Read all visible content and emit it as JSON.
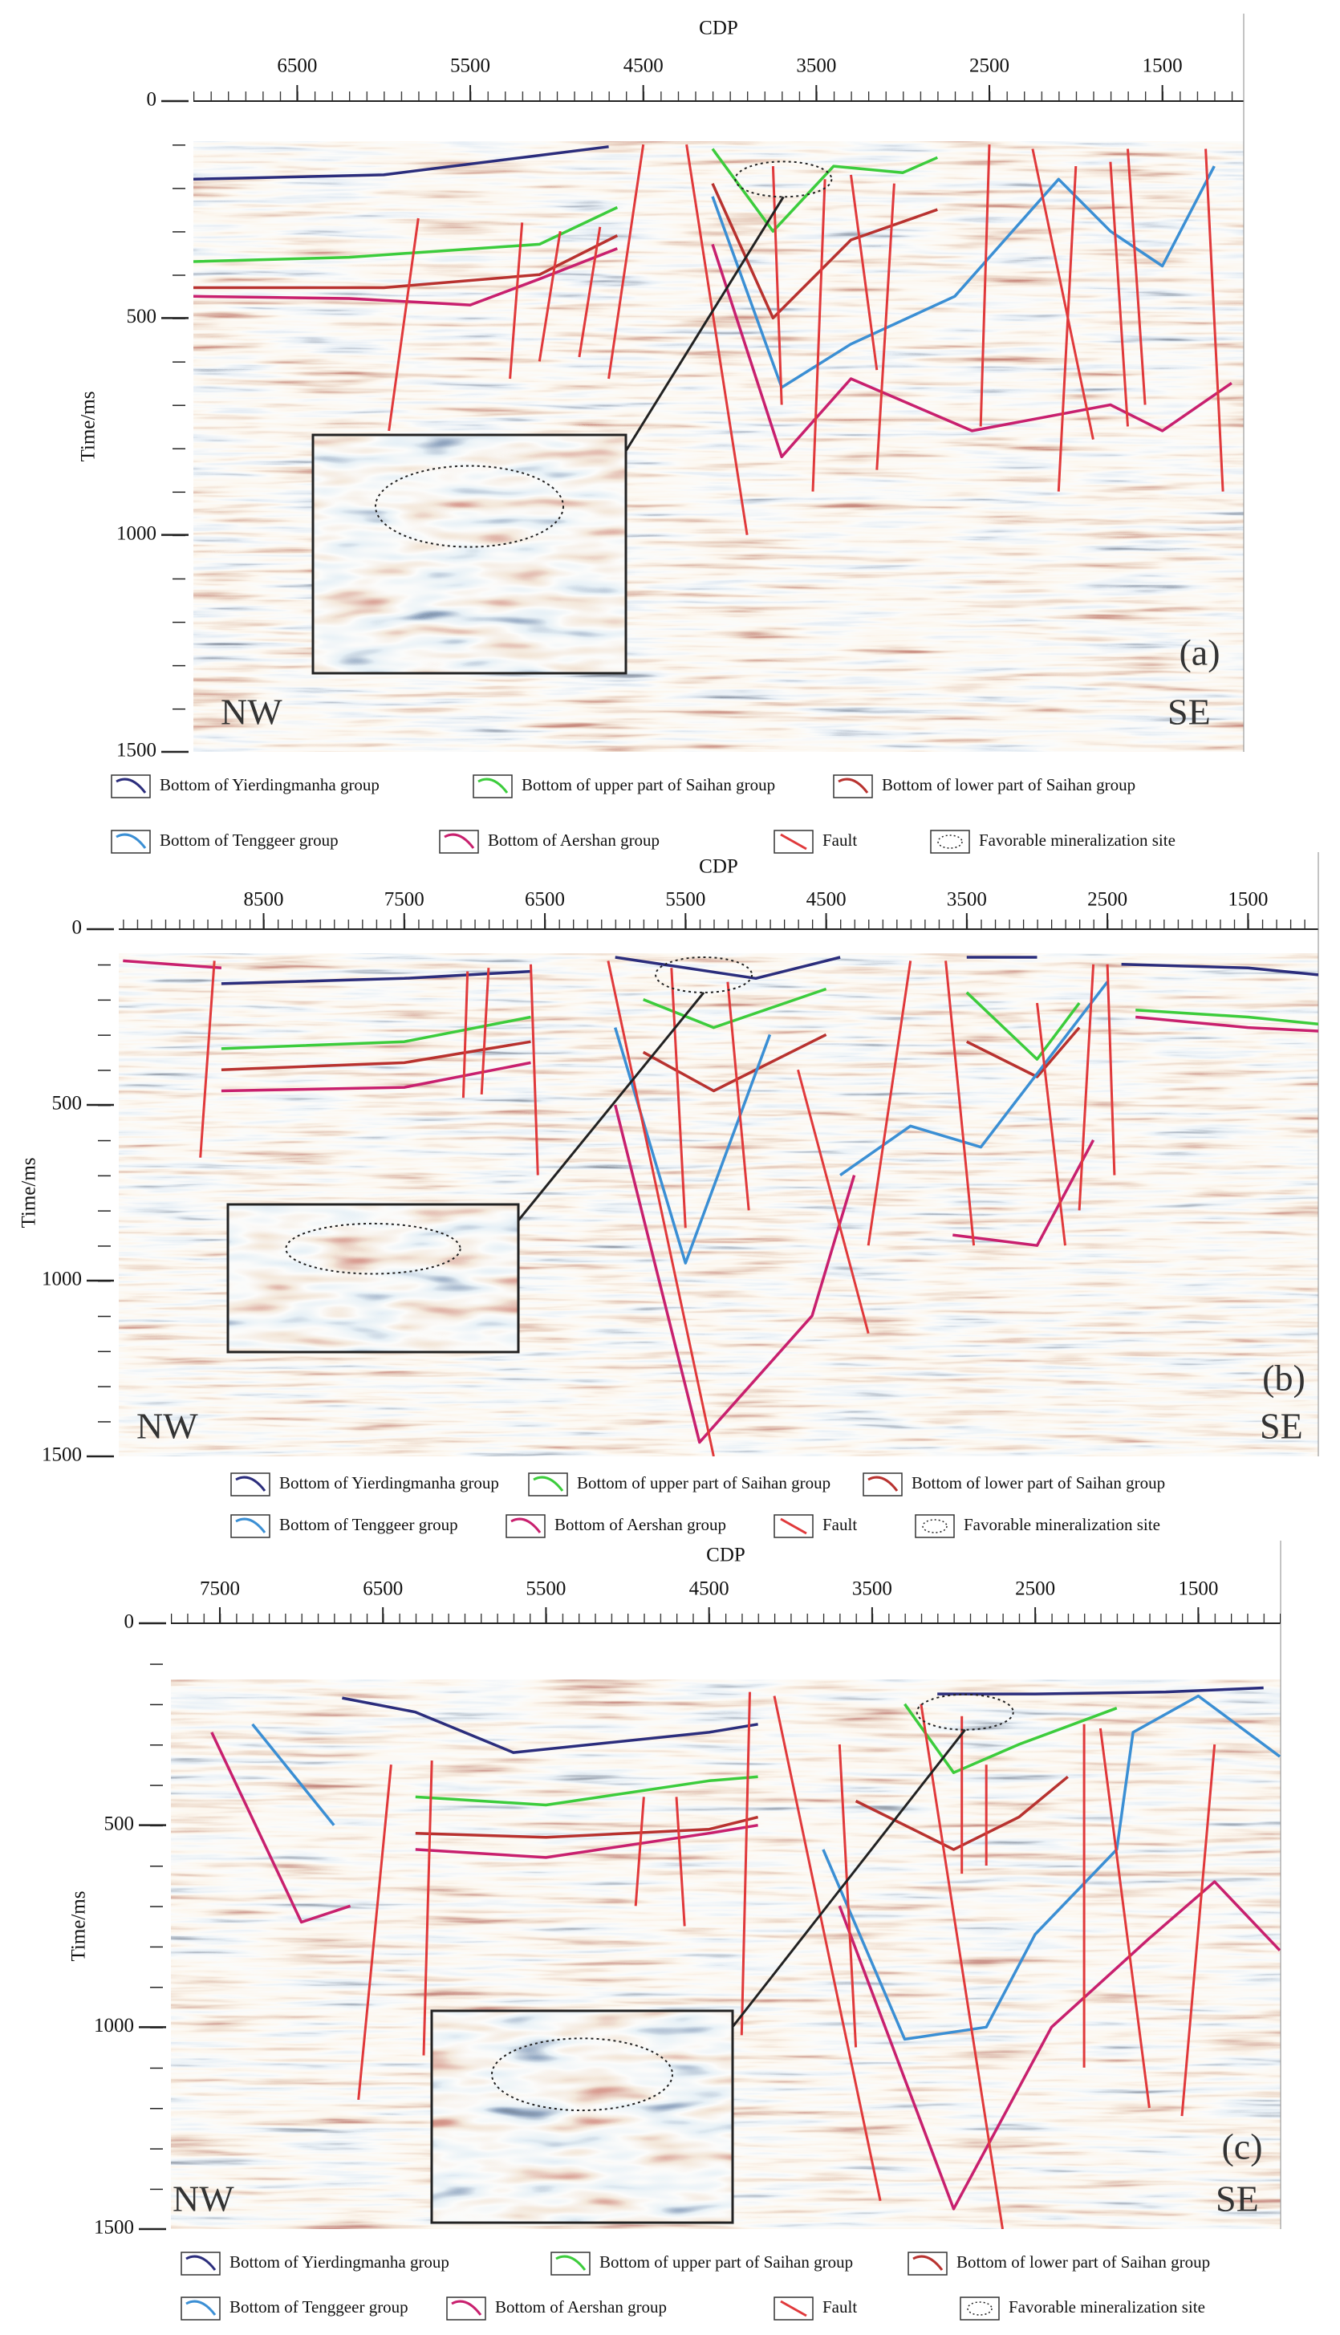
{
  "chart_data": [
    {
      "type": "seismic",
      "x_label": "CDP",
      "y_label": "Time/ms",
      "panel_label": "(a)",
      "left_label": "NW",
      "right_label": "SE",
      "xlim": [
        7100,
        1030
      ],
      "xticks": [
        6500,
        5500,
        4500,
        3500,
        2500,
        1500
      ],
      "ylim": [
        0,
        1500
      ],
      "yticks": [
        0,
        500,
        1000,
        1500
      ],
      "series": [
        {
          "name": "Bottom of Yierdingmanha group",
          "color": "#2b2d7c",
          "x": [
            7100,
            6000,
            5100,
            4700
          ],
          "values": [
            180,
            170,
            125,
            105
          ]
        },
        {
          "name": "Bottom of upper part of Saihan group",
          "color": "#3ccc3c",
          "x": [
            7100,
            6200,
            5100,
            4650,
            null,
            4100,
            3750,
            3400,
            3000,
            2800
          ],
          "values": [
            370,
            360,
            330,
            245,
            null,
            110,
            300,
            150,
            165,
            130
          ]
        },
        {
          "name": "Bottom of lower part of Saihan group",
          "color": "#b8322f",
          "x": [
            7100,
            6000,
            5100,
            4650,
            null,
            4100,
            3750,
            3300,
            2800
          ],
          "values": [
            430,
            430,
            400,
            310,
            null,
            190,
            500,
            320,
            250
          ]
        },
        {
          "name": "Bottom of Tenggeer group",
          "color": "#3b8fd4",
          "x": [
            4100,
            3700,
            3300,
            2700,
            2100,
            1800,
            1500,
            1200
          ],
          "values": [
            220,
            660,
            560,
            450,
            180,
            300,
            380,
            150
          ]
        },
        {
          "name": "Bottom of Aershan group",
          "color": "#c8206e",
          "x": [
            7100,
            6200,
            5500,
            5100,
            4650,
            null,
            4100,
            3700,
            3300,
            2600,
            1800,
            1500,
            1100
          ],
          "values": [
            450,
            455,
            470,
            410,
            340,
            null,
            330,
            820,
            640,
            760,
            700,
            760,
            650
          ]
        },
        {
          "name": "Fault",
          "color": "#e0393b",
          "x": [
            5800,
            5970,
            null,
            5200,
            5270,
            null,
            4980,
            5100,
            null,
            4750,
            4870,
            null,
            4500,
            4700,
            null,
            4250,
            3900,
            null,
            3750,
            3700,
            null,
            3450,
            3520,
            null,
            3300,
            3150,
            null,
            3050,
            3150,
            null,
            2500,
            2550,
            null,
            2250,
            1900,
            null,
            2000,
            2100,
            null,
            1700,
            1600,
            null,
            1800,
            1700,
            null,
            1250,
            1150
          ],
          "values": [
            270,
            760,
            null,
            280,
            640,
            null,
            300,
            600,
            null,
            290,
            590,
            null,
            100,
            640,
            null,
            100,
            1000,
            null,
            150,
            700,
            null,
            180,
            900,
            null,
            170,
            620,
            null,
            190,
            850,
            null,
            100,
            750,
            null,
            110,
            780,
            null,
            150,
            900,
            null,
            110,
            700,
            null,
            140,
            750,
            null,
            110,
            900
          ]
        }
      ],
      "site": {
        "name": "Favorable mineralization site",
        "x": 3690,
        "y": 180
      }
    },
    {
      "type": "seismic",
      "x_label": "CDP",
      "y_label": "Time/ms",
      "panel_label": "(b)",
      "left_label": "NW",
      "right_label": "SE",
      "xlim": [
        9530,
        1000
      ],
      "xticks": [
        8500,
        7500,
        6500,
        5500,
        4500,
        3500,
        2500,
        1500
      ],
      "ylim": [
        0,
        1500
      ],
      "yticks": [
        0,
        500,
        1000,
        1500
      ],
      "series": [
        {
          "name": "Bottom of Yierdingmanha group",
          "color": "#2b2d7c",
          "x": [
            8800,
            7500,
            6600,
            null,
            6000,
            5000,
            4400,
            null,
            3500,
            3000,
            null,
            2400,
            1500,
            1000
          ],
          "values": [
            155,
            140,
            120,
            null,
            80,
            140,
            80,
            null,
            80,
            80,
            null,
            100,
            110,
            130
          ]
        },
        {
          "name": "Bottom of upper part of Saihan group",
          "color": "#3ccc3c",
          "x": [
            8800,
            7500,
            6600,
            null,
            5800,
            5300,
            4500,
            null,
            3500,
            3000,
            2700,
            null,
            2300,
            1500,
            1000
          ],
          "values": [
            340,
            320,
            250,
            null,
            200,
            280,
            170,
            null,
            180,
            370,
            210,
            null,
            230,
            250,
            270
          ]
        },
        {
          "name": "Bottom of lower part of Saihan group",
          "color": "#b8322f",
          "x": [
            8800,
            7500,
            6600,
            null,
            5800,
            5300,
            4500,
            null,
            3500,
            3000,
            2700
          ],
          "values": [
            400,
            380,
            320,
            null,
            350,
            460,
            300,
            null,
            320,
            420,
            280
          ]
        },
        {
          "name": "Bottom of Tenggeer group",
          "color": "#3b8fd4",
          "x": [
            6000,
            5500,
            4900,
            null,
            4400,
            3900,
            3400,
            2500
          ],
          "values": [
            280,
            950,
            300,
            null,
            700,
            560,
            620,
            150
          ]
        },
        {
          "name": "Bottom of Aershan group",
          "color": "#c8206e",
          "x": [
            9500,
            8800,
            null,
            8800,
            7500,
            6600,
            null,
            6000,
            5400,
            4600,
            4300,
            null,
            3600,
            3000,
            2600,
            null,
            2300,
            1500,
            1000
          ],
          "values": [
            90,
            110,
            null,
            460,
            450,
            380,
            null,
            500,
            1460,
            1100,
            700,
            null,
            870,
            900,
            600,
            null,
            250,
            280,
            290
          ]
        },
        {
          "name": "Fault",
          "color": "#e0393b",
          "x": [
            8850,
            8950,
            null,
            7050,
            7080,
            null,
            6900,
            6950,
            null,
            6600,
            6550,
            null,
            6050,
            5300,
            null,
            5600,
            5500,
            null,
            5200,
            5050,
            null,
            4700,
            4200,
            null,
            3900,
            4200,
            null,
            3650,
            3450,
            null,
            3000,
            2800,
            null,
            2600,
            2700,
            null,
            2500,
            2450
          ],
          "values": [
            90,
            650,
            null,
            120,
            480,
            null,
            110,
            470,
            null,
            100,
            700,
            null,
            90,
            1500,
            null,
            110,
            850,
            null,
            150,
            800,
            null,
            400,
            1150,
            null,
            90,
            900,
            null,
            90,
            900,
            null,
            210,
            900,
            null,
            100,
            800,
            null,
            100,
            700
          ]
        }
      ],
      "site": {
        "name": "Favorable mineralization site",
        "x": 5370,
        "y": 130
      }
    },
    {
      "type": "seismic",
      "x_label": "CDP",
      "y_label": "Time/ms",
      "panel_label": "(c)",
      "left_label": "NW",
      "right_label": "SE",
      "xlim": [
        7800,
        995
      ],
      "xticks": [
        7500,
        6500,
        5500,
        4500,
        3500,
        2500,
        1500
      ],
      "ylim": [
        0,
        1500
      ],
      "yticks": [
        0,
        500,
        1000,
        1500
      ],
      "series": [
        {
          "name": "Bottom of Yierdingmanha group",
          "color": "#2b2d7c",
          "x": [
            6750,
            6300,
            5700,
            4500,
            4200,
            null,
            3100,
            2500,
            1700,
            1100
          ],
          "values": [
            185,
            220,
            320,
            270,
            250,
            null,
            175,
            175,
            170,
            160
          ]
        },
        {
          "name": "Bottom of upper part of Saihan group",
          "color": "#3ccc3c",
          "x": [
            6300,
            5500,
            4500,
            4200,
            null,
            3300,
            3000,
            2600,
            2000
          ],
          "values": [
            430,
            450,
            390,
            380,
            null,
            200,
            370,
            300,
            210
          ]
        },
        {
          "name": "Bottom of lower part of Saihan group",
          "color": "#b8322f",
          "x": [
            6300,
            5500,
            4500,
            4200,
            null,
            3600,
            3000,
            2600,
            2300
          ],
          "values": [
            520,
            530,
            510,
            480,
            null,
            440,
            560,
            480,
            380
          ]
        },
        {
          "name": "Bottom of Tenggeer group",
          "color": "#3b8fd4",
          "x": [
            7300,
            6800,
            null,
            3800,
            3300,
            2800,
            2500,
            2000,
            1900,
            1500,
            1000
          ],
          "values": [
            250,
            500,
            null,
            560,
            1030,
            1000,
            770,
            560,
            270,
            180,
            330
          ]
        },
        {
          "name": "Bottom of Aershan group",
          "color": "#c8206e",
          "x": [
            7550,
            7000,
            6700,
            null,
            6300,
            5500,
            4500,
            4200,
            null,
            3700,
            3000,
            2400,
            1800,
            1400,
            1000
          ],
          "values": [
            270,
            740,
            700,
            null,
            560,
            580,
            520,
            500,
            null,
            700,
            1450,
            1000,
            780,
            640,
            810
          ]
        },
        {
          "name": "Fault",
          "color": "#e0393b",
          "x": [
            6450,
            6650,
            null,
            6200,
            6250,
            null,
            4900,
            4950,
            null,
            4700,
            4650,
            null,
            4250,
            4300,
            null,
            4100,
            3450,
            null,
            3700,
            3600,
            null,
            3200,
            2700,
            null,
            2950,
            2950,
            null,
            2800,
            2800,
            null,
            2200,
            2200,
            null,
            2100,
            1800,
            null,
            1400,
            1600
          ],
          "values": [
            350,
            1180,
            null,
            340,
            1070,
            null,
            430,
            700,
            null,
            430,
            750,
            null,
            170,
            1020,
            null,
            180,
            1430,
            null,
            300,
            1050,
            null,
            200,
            1500,
            null,
            230,
            620,
            null,
            350,
            600,
            null,
            250,
            1100,
            null,
            260,
            1200,
            null,
            300,
            1220
          ]
        }
      ],
      "site": {
        "name": "Favorable mineralization site",
        "x": 2930,
        "y": 220
      }
    }
  ]
}
